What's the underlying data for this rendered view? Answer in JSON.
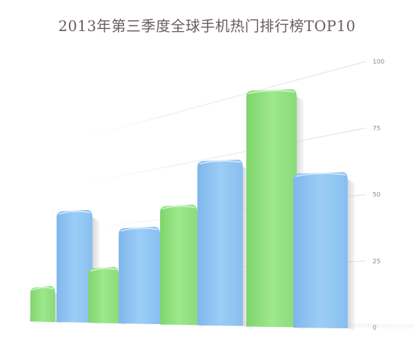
{
  "title": "2013年第三季度全球手机热门排行榜TOP10",
  "chart_data": {
    "type": "bar",
    "style": "3d-perspective",
    "title": "2013年第三季度全球手机热门排行榜TOP10",
    "xlabel": "",
    "ylabel": "",
    "ylim": [
      0,
      100
    ],
    "yticks": [
      "0",
      "25",
      "50",
      "75",
      "100"
    ],
    "grid": true,
    "legend": "none",
    "bars": [
      {
        "color": "green",
        "value": 13
      },
      {
        "color": "blue",
        "value": 43
      },
      {
        "color": "green",
        "value": 21
      },
      {
        "color": "blue",
        "value": 37
      },
      {
        "color": "green",
        "value": 46
      },
      {
        "color": "blue",
        "value": 64
      },
      {
        "color": "green",
        "value": 92
      },
      {
        "color": "blue",
        "value": 60
      }
    ],
    "colors": {
      "green": "#8fe07e",
      "blue": "#8ec4f2"
    }
  }
}
